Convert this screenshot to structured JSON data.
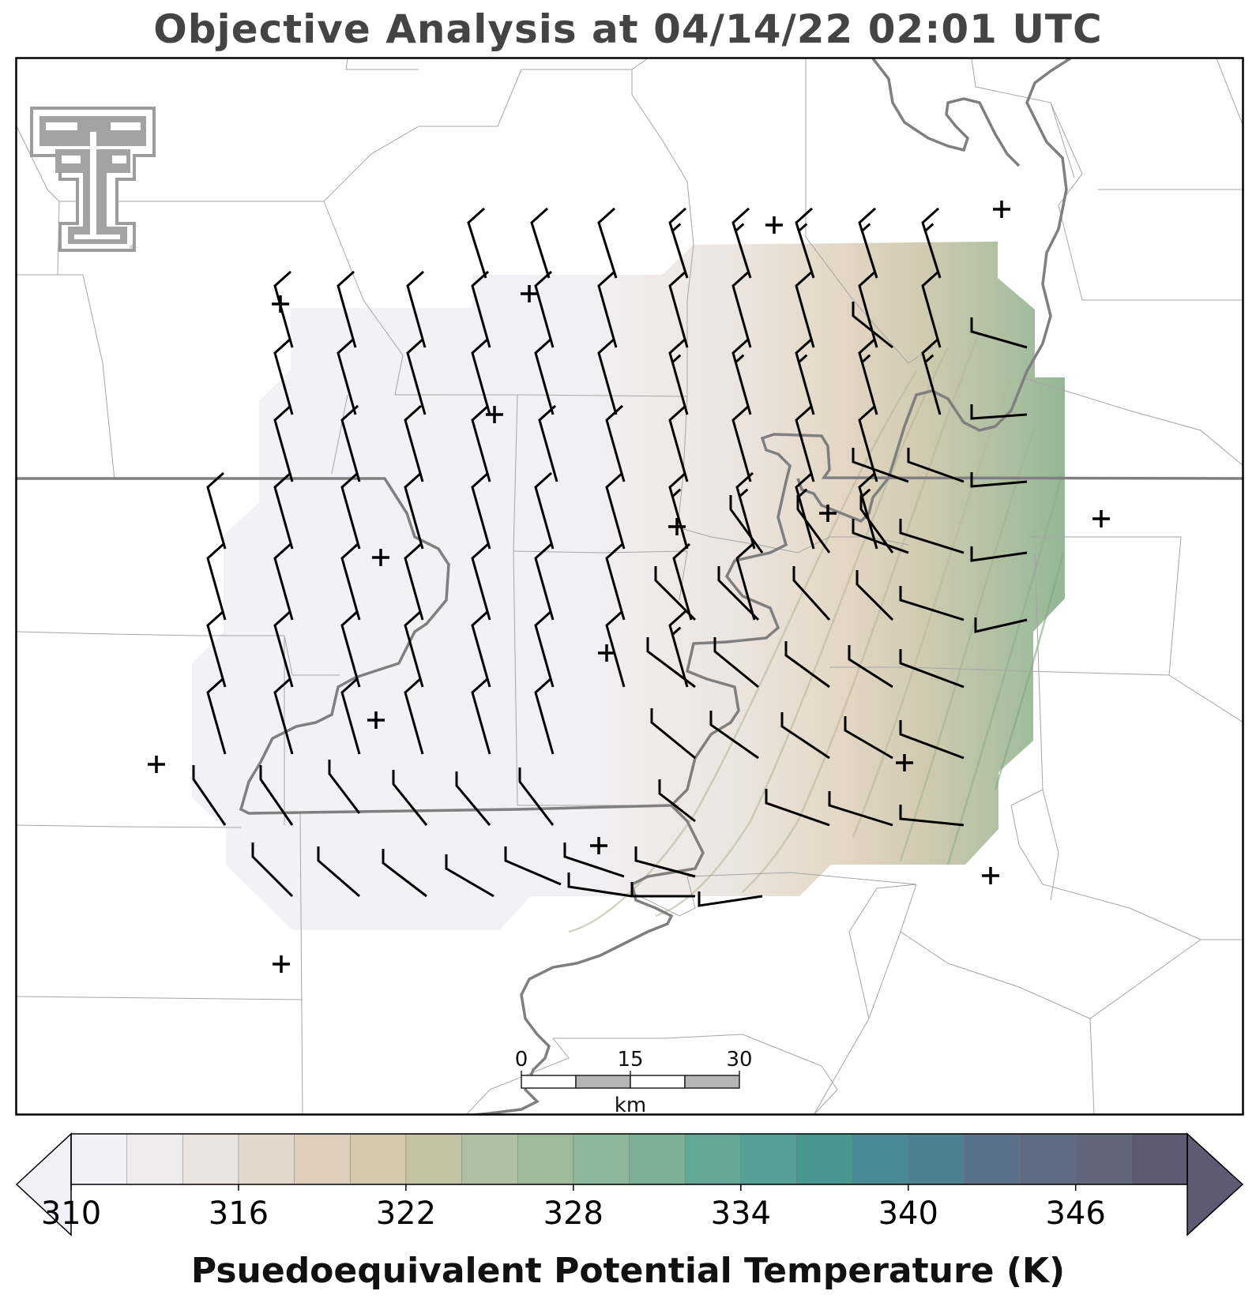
{
  "title": "Objective Analysis at 04/14/22 02:01 UTC",
  "colorbar": {
    "label": "Psuedoequivalent Potential Temperature (K)",
    "ticks": [
      "310",
      "316",
      "322",
      "328",
      "334",
      "340",
      "346"
    ],
    "min": 310,
    "max": 350,
    "step": 2,
    "extend": "both",
    "colors": [
      "#f1f0f5",
      "#eeeced",
      "#e9e3df",
      "#e3d8cb",
      "#ddcfb9",
      "#d4c9ad",
      "#c1c3a2",
      "#afc0a2",
      "#9dbb9c",
      "#8db79a",
      "#7db196",
      "#62a894",
      "#52a096",
      "#48988f",
      "#488b95",
      "#4d8092",
      "#5a7289",
      "#5f6b83",
      "#61667c",
      "#5e5a74"
    ],
    "under_color": "#f2f2f6",
    "over_color": "#5e5a74"
  },
  "scale_bar": {
    "labels": [
      "0",
      "15",
      "30"
    ],
    "unit": "km"
  },
  "logo": {
    "name": "texas-tech-double-t-logo",
    "color": "#9c9c9c"
  },
  "stations_count_note": "",
  "wind_barb_color": "#000000",
  "state_boundary_color": "#7f7f7f",
  "county_line_color": "#a5a5a5"
}
